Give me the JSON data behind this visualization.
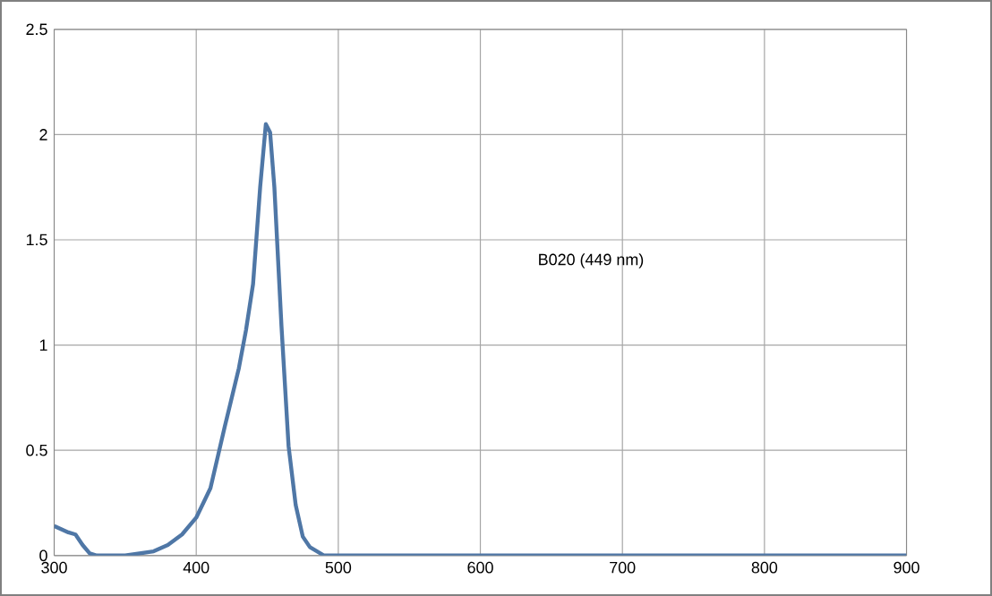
{
  "chart_data": {
    "type": "line",
    "x": [
      300,
      310,
      315,
      320,
      325,
      330,
      350,
      370,
      380,
      390,
      400,
      410,
      420,
      430,
      435,
      440,
      445,
      449,
      452,
      455,
      460,
      465,
      470,
      475,
      480,
      490,
      500,
      600,
      700,
      800,
      900
    ],
    "series": [
      {
        "color": "#4f77a6",
        "values": [
          0.14,
          0.11,
          0.1,
          0.05,
          0.01,
          0,
          0,
          0.02,
          0.05,
          0.1,
          0.18,
          0.32,
          0.61,
          0.89,
          1.07,
          1.29,
          1.75,
          2.05,
          2.01,
          1.75,
          1.09,
          0.52,
          0.24,
          0.09,
          0.04,
          0,
          0,
          0,
          0,
          0,
          0
        ]
      }
    ],
    "annotations": [
      "B020 (449 nm)"
    ],
    "xlim": [
      300,
      900
    ],
    "ylim": [
      0,
      2.5
    ],
    "xticks": [
      300,
      400,
      500,
      600,
      700,
      800,
      900
    ],
    "yticks": [
      0,
      0.5,
      1,
      1.5,
      2,
      2.5
    ],
    "grid": true,
    "marker": "none",
    "line_style": "solid"
  }
}
